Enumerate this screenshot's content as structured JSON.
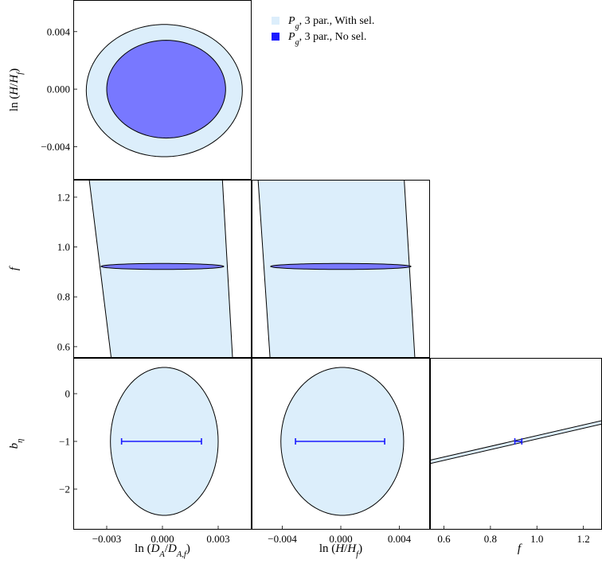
{
  "colors": {
    "with_sel": "#dceefb",
    "no_sel": "#7878ff",
    "errorbar": "#1a1aff",
    "stroke": "#000000"
  },
  "legend": {
    "placement": "top-right",
    "entries": [
      {
        "sym": "P",
        "sub": "g",
        "text": ", 3 par., With sel.",
        "color": "#dceefb"
      },
      {
        "sym": "P",
        "sub": "g",
        "text": ", 3 par., No sel.",
        "color": "#1a1aff"
      }
    ]
  },
  "chart_data": {
    "type": "triangle-contour",
    "series": [
      {
        "name": "Pg, 3 par., With sel.",
        "color": "#dceefb"
      },
      {
        "name": "Pg, 3 par., No sel.",
        "color": "#7878ff"
      }
    ],
    "axes": {
      "lnDA": {
        "label_pre": "ln (D",
        "label_sub": "A",
        "label_mid": "/D",
        "label_sub2": "A,f",
        "label_post": ")",
        "range": [
          -0.0048,
          0.0048
        ],
        "ticks": [
          {
            "v": -0.003,
            "t": "−0.003"
          },
          {
            "v": 0,
            "t": "0.000"
          },
          {
            "v": 0.003,
            "t": "0.003"
          }
        ]
      },
      "lnH": {
        "label_pre": "ln (H/H",
        "label_sub": "f",
        "label_post": ")",
        "range_x": [
          -0.0061,
          0.0061
        ],
        "range_y": [
          -0.0063,
          0.0062
        ],
        "ticks": [
          {
            "v": -0.004,
            "t": "−0.004"
          },
          {
            "v": 0,
            "t": "0.000"
          },
          {
            "v": 0.004,
            "t": "0.004"
          }
        ]
      },
      "f": {
        "label": "f",
        "range_x": [
          0.54,
          1.28
        ],
        "range_y": [
          0.555,
          1.27
        ],
        "ticks_x": [
          {
            "v": 0.6,
            "t": "0.6"
          },
          {
            "v": 0.8,
            "t": "0.8"
          },
          {
            "v": 1.0,
            "t": "1.0"
          },
          {
            "v": 1.2,
            "t": "1.2"
          }
        ],
        "ticks_y": [
          {
            "v": 0.6,
            "t": "0.6"
          },
          {
            "v": 0.8,
            "t": "0.8"
          },
          {
            "v": 1.0,
            "t": "1.0"
          },
          {
            "v": 1.2,
            "t": "1.2"
          }
        ]
      },
      "beta": {
        "label": "b",
        "label_sub": "η",
        "range": [
          -2.85,
          0.75
        ],
        "ticks": [
          {
            "v": 0,
            "t": "0"
          },
          {
            "v": -1,
            "t": "−1"
          },
          {
            "v": -2,
            "t": "−2"
          }
        ]
      }
    },
    "panels": [
      {
        "id": "DA-H",
        "x": "lnDA",
        "y": "lnH",
        "with_sel": {
          "cx": 0.0001,
          "cy": -0.0001,
          "sx": 0.0042,
          "sy": 0.0046,
          "angle_deg": 28
        },
        "no_sel": {
          "cx": 0.0002,
          "cy": 0.0,
          "sx": 0.0032,
          "sy": 0.0034,
          "angle_deg": 18
        }
      },
      {
        "id": "DA-f",
        "x": "lnDA",
        "y": "f",
        "with_sel_band": {
          "left_top": -0.004,
          "left_bottom": -0.0027,
          "right_top": 0.0032,
          "right_bottom": 0.0038
        },
        "no_sel": {
          "cx": 0.0,
          "cy": 0.922,
          "sx": 0.0033,
          "sy": 0.012,
          "angle_deg": 0.3
        }
      },
      {
        "id": "H-f",
        "x": "lnH",
        "y": "f",
        "with_sel_band": {
          "left_top": -0.0057,
          "left_bottom": -0.0048,
          "right_top": 0.0043,
          "right_bottom": 0.0051
        },
        "no_sel": {
          "cx": 0.0,
          "cy": 0.922,
          "sx": 0.0048,
          "sy": 0.012,
          "angle_deg": 0.3
        }
      },
      {
        "id": "DA-beta",
        "x": "lnDA",
        "y": "beta",
        "with_sel": {
          "cx": 0.0001,
          "cy": -1.0,
          "sx": 0.0029,
          "sy": 1.55,
          "angle_deg": -28
        },
        "no_sel_errorbar": {
          "y": -1.0,
          "x_min": -0.0022,
          "x_max": 0.0021
        }
      },
      {
        "id": "H-beta",
        "x": "lnH",
        "y": "beta",
        "with_sel": {
          "cx": 0.0001,
          "cy": -1.0,
          "sx": 0.0042,
          "sy": 1.55,
          "angle_deg": -28
        },
        "no_sel_errorbar": {
          "y": -1.0,
          "x_min": -0.0031,
          "x_max": 0.003
        }
      },
      {
        "id": "f-beta",
        "x": "f",
        "y": "beta",
        "with_sel_line": {
          "x0": 0.54,
          "y0": -1.43,
          "x1": 1.28,
          "y1": -0.6,
          "half_width": 0.035
        },
        "no_sel_errorbar": {
          "y": -1.0,
          "x_min": 0.905,
          "x_max": 0.935
        }
      }
    ]
  }
}
